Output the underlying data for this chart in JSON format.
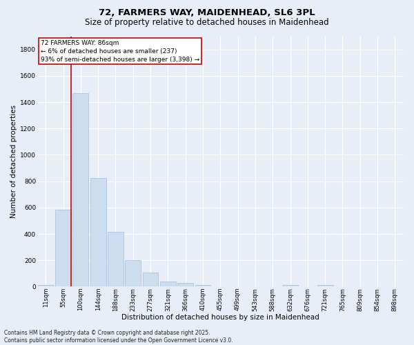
{
  "title_line1": "72, FARMERS WAY, MAIDENHEAD, SL6 3PL",
  "title_line2": "Size of property relative to detached houses in Maidenhead",
  "xlabel": "Distribution of detached houses by size in Maidenhead",
  "ylabel": "Number of detached properties",
  "bar_color": "#ccddf0",
  "bar_edge_color": "#aabbd8",
  "vline_color": "#cc0000",
  "vline_x_index": 1,
  "categories": [
    "11sqm",
    "55sqm",
    "100sqm",
    "144sqm",
    "188sqm",
    "233sqm",
    "277sqm",
    "321sqm",
    "366sqm",
    "410sqm",
    "455sqm",
    "499sqm",
    "543sqm",
    "588sqm",
    "632sqm",
    "676sqm",
    "721sqm",
    "765sqm",
    "809sqm",
    "854sqm",
    "898sqm"
  ],
  "values": [
    15,
    585,
    1470,
    825,
    415,
    200,
    105,
    40,
    30,
    15,
    0,
    0,
    0,
    0,
    15,
    0,
    15,
    0,
    0,
    0,
    0
  ],
  "ylim": [
    0,
    1900
  ],
  "yticks": [
    0,
    200,
    400,
    600,
    800,
    1000,
    1200,
    1400,
    1600,
    1800
  ],
  "annotation_text": "72 FARMERS WAY: 86sqm\n← 6% of detached houses are smaller (237)\n93% of semi-detached houses are larger (3,398) →",
  "annotation_box_color": "#ffffff",
  "annotation_edge_color": "#cc0000",
  "footnote": "Contains HM Land Registry data © Crown copyright and database right 2025.\nContains public sector information licensed under the Open Government Licence v3.0.",
  "background_color": "#e8eef8",
  "plot_background": "#e8eef8",
  "grid_color": "#ffffff",
  "title_fontsize": 9.5,
  "subtitle_fontsize": 8.5,
  "tick_fontsize": 6,
  "label_fontsize": 7.5,
  "annot_fontsize": 6.5,
  "footnote_fontsize": 5.5
}
